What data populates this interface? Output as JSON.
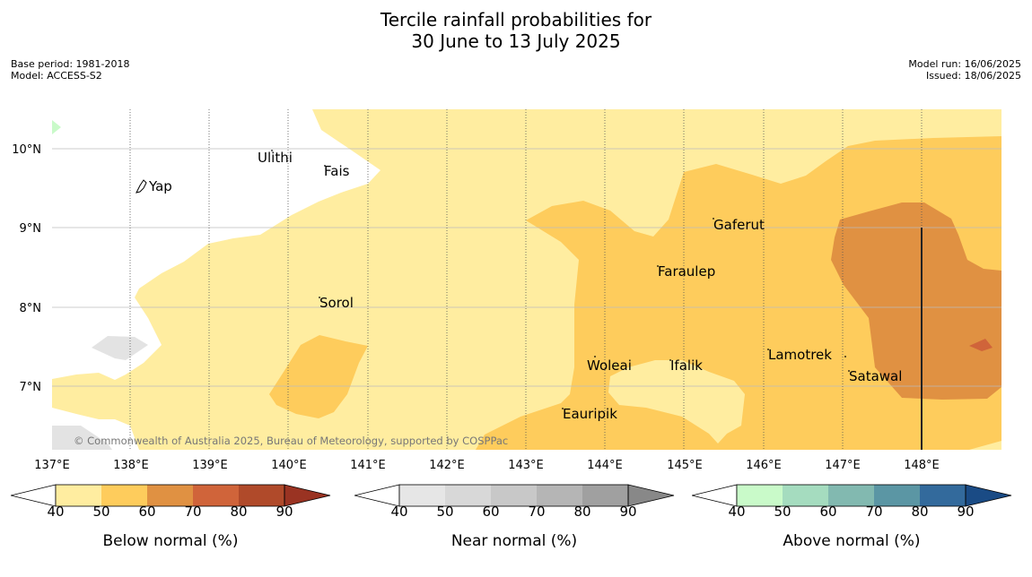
{
  "title_line1": "Tercile rainfall probabilities for",
  "title_line2": "30 June to 13 July 2025",
  "meta": {
    "base_period": "Base period: 1981-2018",
    "model": "Model: ACCESS-S2",
    "model_run": "Model run: 16/06/2025",
    "issued": "Issued: 18/06/2025"
  },
  "map": {
    "lon_labels": [
      "137°E",
      "138°E",
      "139°E",
      "140°E",
      "141°E",
      "142°E",
      "143°E",
      "144°E",
      "145°E",
      "146°E",
      "147°E",
      "148°E"
    ],
    "lat_labels": [
      "10°N",
      "9°N",
      "8°N",
      "7°N"
    ],
    "places": [
      "Ulithi",
      "Fais",
      "Yap",
      "Gaferut",
      "Faraulep",
      "Sorol",
      "Lamotrek",
      "Woleai",
      "Ifalik",
      "Satawal",
      "Eauripik"
    ],
    "copyright": "© Commonwealth of Australia 2025, Bureau of Meteorology, supported by COSPPac"
  },
  "legends": [
    {
      "title": "Below normal (%)",
      "ticks": [
        "40",
        "50",
        "60",
        "70",
        "80",
        "90"
      ],
      "colors": [
        "#ffeda0",
        "#fecc5c",
        "#e09142",
        "#d0643a",
        "#b04a2a",
        "#9a3322"
      ]
    },
    {
      "title": "Near normal (%)",
      "ticks": [
        "40",
        "50",
        "60",
        "70",
        "80",
        "90"
      ],
      "colors": [
        "#e6e6e6",
        "#d8d8d8",
        "#c8c8c8",
        "#b5b5b5",
        "#a0a0a0",
        "#888888"
      ]
    },
    {
      "title": "Above normal (%)",
      "ticks": [
        "40",
        "50",
        "60",
        "70",
        "80",
        "90"
      ],
      "colors": [
        "#c9fac9",
        "#a5dcbf",
        "#82b9b0",
        "#5b96a4",
        "#336a9c",
        "#1a4b85"
      ]
    }
  ]
}
